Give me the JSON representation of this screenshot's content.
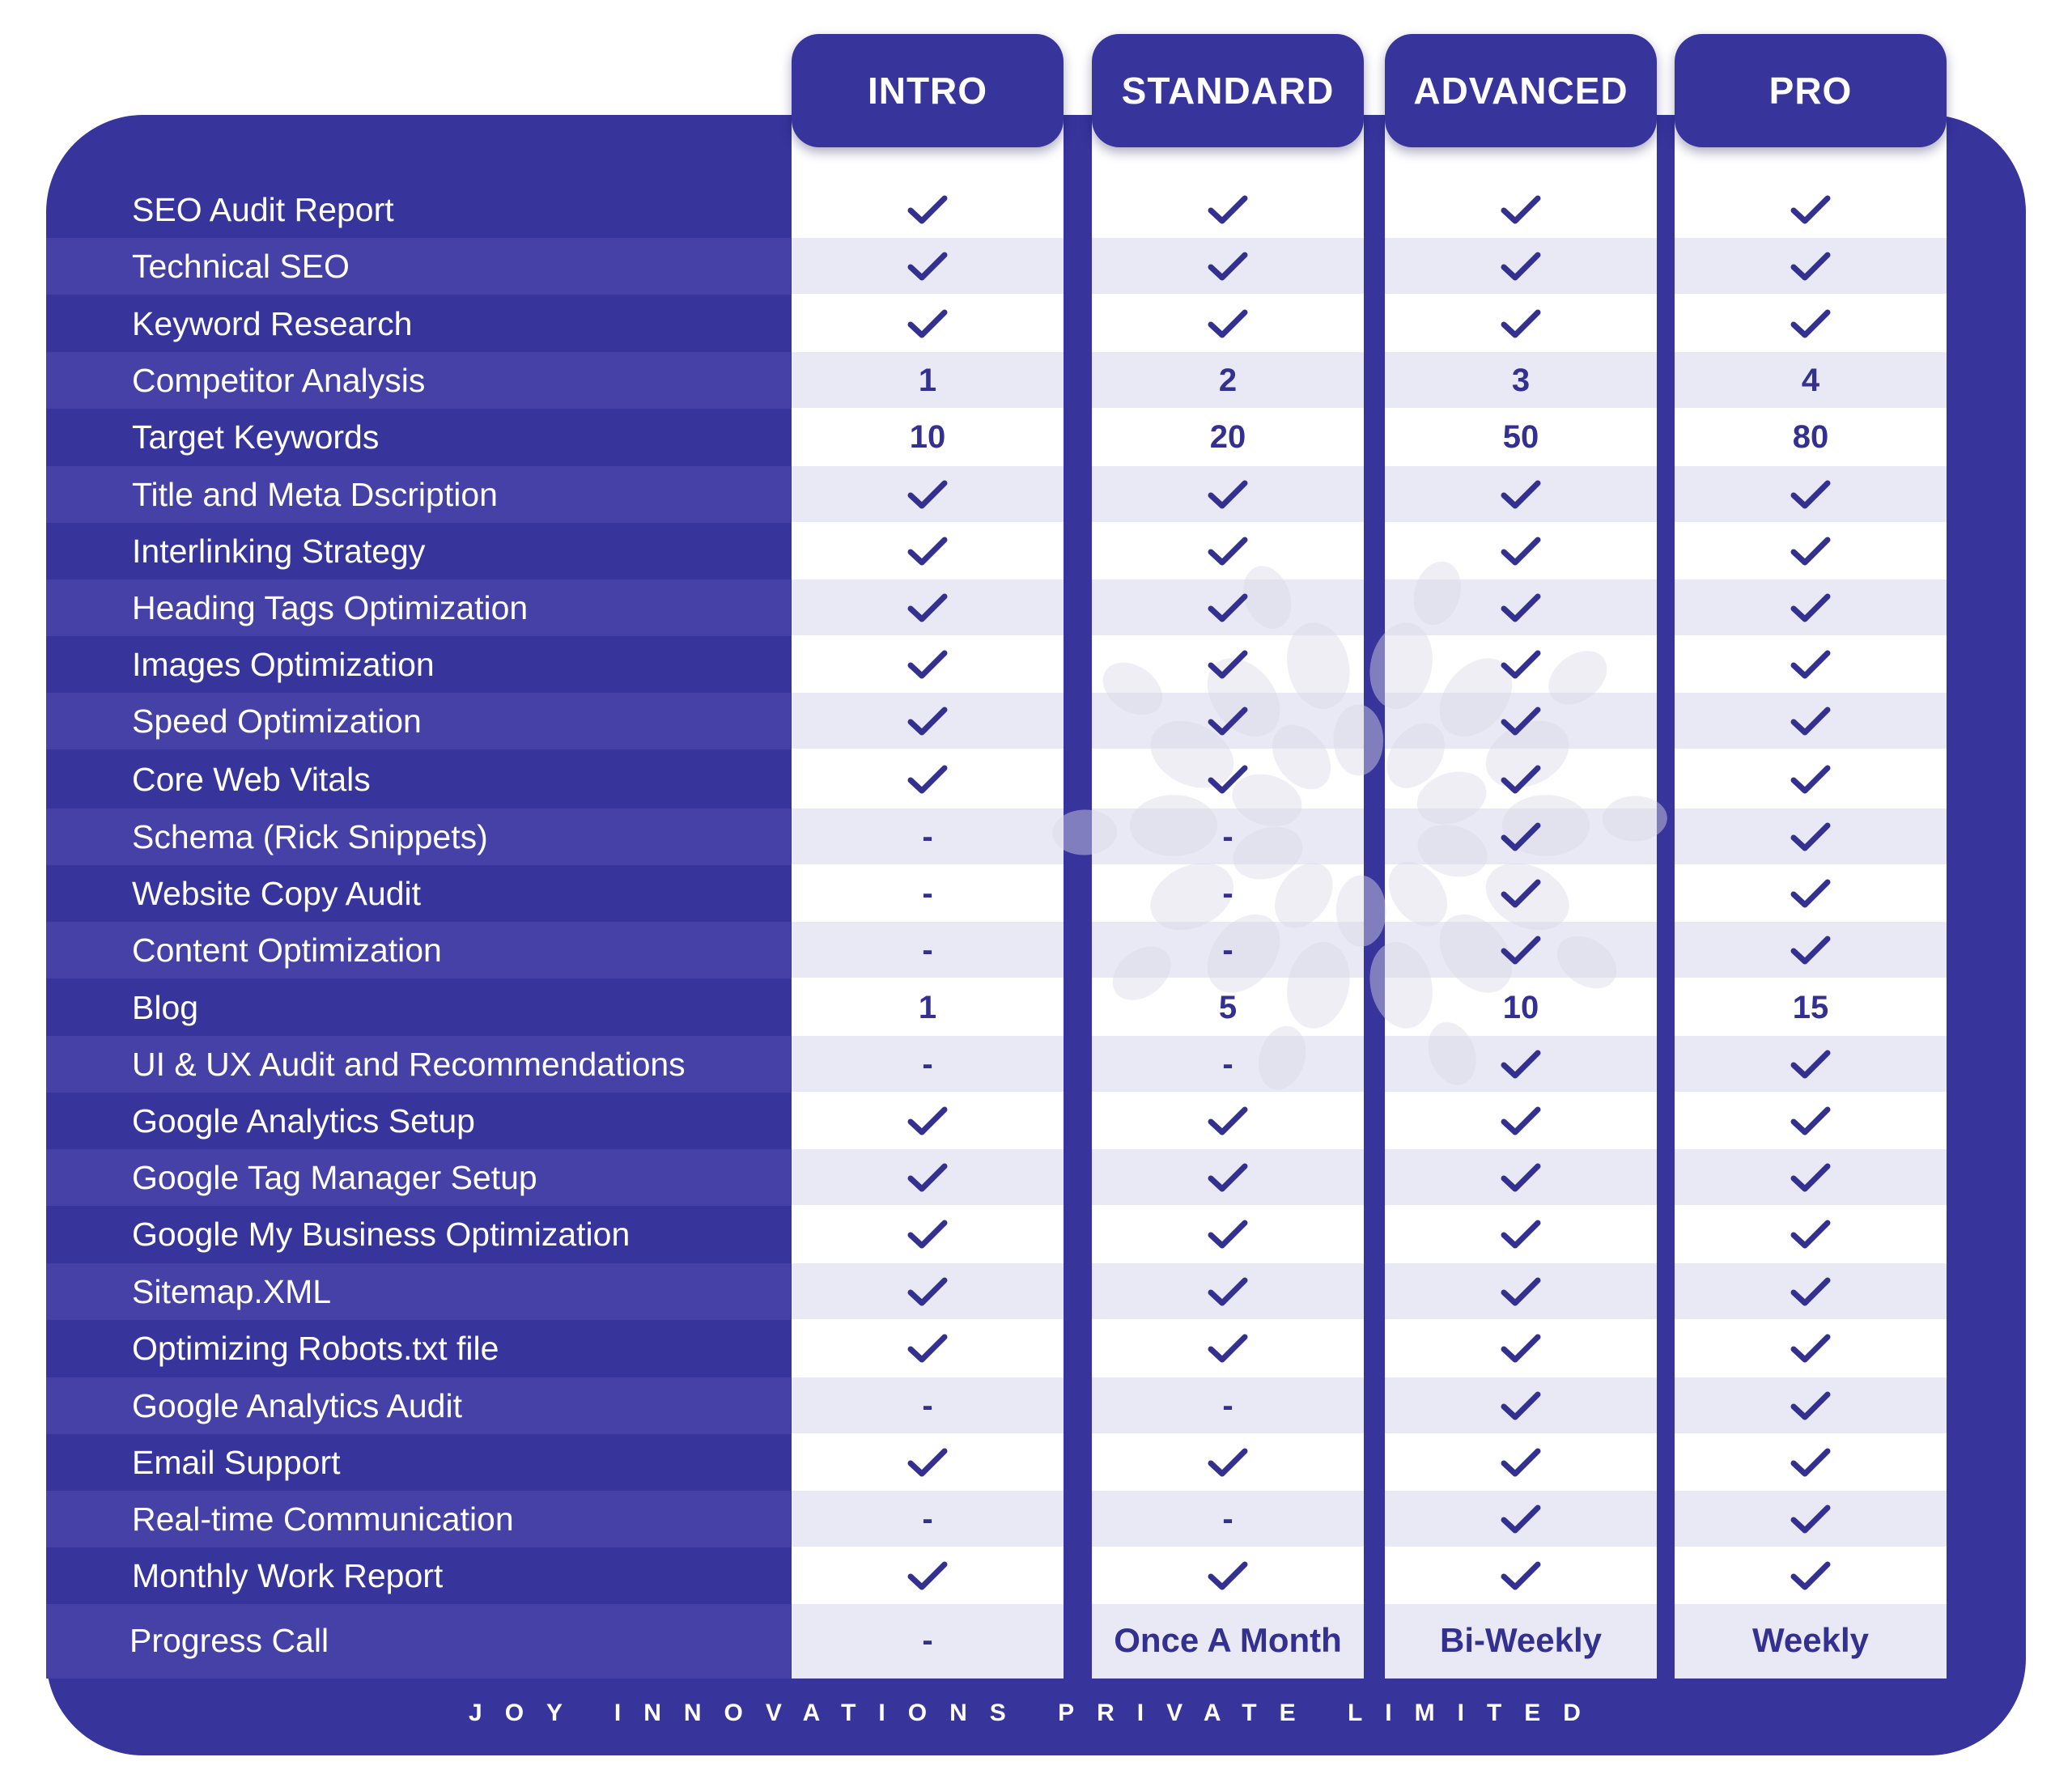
{
  "colors": {
    "panel": "#37349c",
    "band": "#4541a6",
    "cell_alt": "#e9e9f5",
    "accent_text": "#33308f"
  },
  "plans": [
    "INTRO",
    "STANDARD",
    "ADVANCED",
    "PRO"
  ],
  "rows": [
    {
      "feature": "SEO Audit Report",
      "values": [
        "check",
        "check",
        "check",
        "check"
      ]
    },
    {
      "feature": "Technical SEO",
      "values": [
        "check",
        "check",
        "check",
        "check"
      ]
    },
    {
      "feature": "Keyword Research",
      "values": [
        "check",
        "check",
        "check",
        "check"
      ]
    },
    {
      "feature": "Competitor Analysis",
      "values": [
        "1",
        "2",
        "3",
        "4"
      ]
    },
    {
      "feature": "Target Keywords",
      "values": [
        "10",
        "20",
        "50",
        "80"
      ]
    },
    {
      "feature": "Title and Meta Dscription",
      "values": [
        "check",
        "check",
        "check",
        "check"
      ]
    },
    {
      "feature": "Interlinking Strategy",
      "values": [
        "check",
        "check",
        "check",
        "check"
      ]
    },
    {
      "feature": "Heading Tags Optimization",
      "values": [
        "check",
        "check",
        "check",
        "check"
      ]
    },
    {
      "feature": "Images Optimization",
      "values": [
        "check",
        "check",
        "check",
        "check"
      ]
    },
    {
      "feature": "Speed Optimization",
      "values": [
        "check",
        "check",
        "check",
        "check"
      ]
    },
    {
      "feature": "Core Web Vitals",
      "values": [
        "check",
        "check",
        "check",
        "check"
      ]
    },
    {
      "feature": "Schema (Rick Snippets)",
      "values": [
        "-",
        "-",
        "check",
        "check"
      ]
    },
    {
      "feature": "Website Copy Audit",
      "values": [
        "-",
        "-",
        "check",
        "check"
      ]
    },
    {
      "feature": "Content Optimization",
      "values": [
        "-",
        "-",
        "check",
        "check"
      ]
    },
    {
      "feature": "Blog",
      "values": [
        "1",
        "5",
        "10",
        "15"
      ]
    },
    {
      "feature": "UI & UX Audit and Recommendations",
      "values": [
        "-",
        "-",
        "check",
        "check"
      ]
    },
    {
      "feature": "Google Analytics Setup",
      "values": [
        "check",
        "check",
        "check",
        "check"
      ]
    },
    {
      "feature": "Google Tag Manager Setup",
      "values": [
        "check",
        "check",
        "check",
        "check"
      ]
    },
    {
      "feature": "Google My Business Optimization",
      "values": [
        "check",
        "check",
        "check",
        "check"
      ]
    },
    {
      "feature": "Sitemap.XML",
      "values": [
        "check",
        "check",
        "check",
        "check"
      ]
    },
    {
      "feature": "Optimizing Robots.txt file",
      "values": [
        "check",
        "check",
        "check",
        "check"
      ]
    },
    {
      "feature": "Google Analytics Audit",
      "values": [
        "-",
        "-",
        "check",
        "check"
      ]
    },
    {
      "feature": "Email Support",
      "values": [
        "check",
        "check",
        "check",
        "check"
      ]
    },
    {
      "feature": "Real-time Communication",
      "values": [
        "-",
        "-",
        "check",
        "check"
      ]
    },
    {
      "feature": "Monthly Work Report",
      "values": [
        "check",
        "check",
        "check",
        "check"
      ]
    },
    {
      "feature": "Progress Call",
      "values": [
        "-",
        "Once A Month",
        "Bi-Weekly",
        "Weekly"
      ]
    }
  ],
  "footer": "JOY INNOVATIONS PRIVATE LIMITED"
}
